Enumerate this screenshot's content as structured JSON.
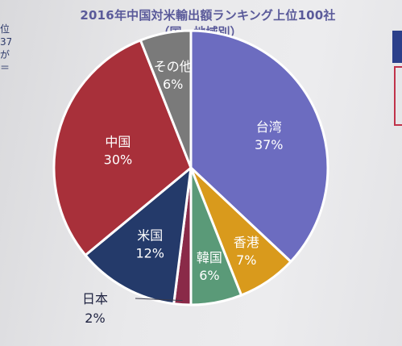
{
  "chart_data": {
    "type": "pie",
    "title": "2016年中国対米輸出額ランキング上位100社",
    "subtitle": "（国・地域別）",
    "slices": [
      {
        "label": "台湾",
        "value": 37,
        "value_label": "37%",
        "color": "#6c6cc0"
      },
      {
        "label": "香港",
        "value": 7,
        "value_label": "7%",
        "color": "#d99a1c"
      },
      {
        "label": "韓国",
        "value": 6,
        "value_label": "6%",
        "color": "#5a9a78"
      },
      {
        "label": "日本",
        "value": 2,
        "value_label": "2%",
        "color": "#8a2a48"
      },
      {
        "label": "米国",
        "value": 12,
        "value_label": "12%",
        "color": "#243a6a"
      },
      {
        "label": "中国",
        "value": 30,
        "value_label": "30%",
        "color": "#a8303a"
      },
      {
        "label": "その他",
        "value": 6,
        "value_label": "6%",
        "color": "#7a7a7a"
      }
    ],
    "start_angle_deg": 0,
    "direction": "clockwise",
    "legend": "none"
  },
  "edge_text": [
    "位",
    "37",
    "が",
    "",
    "",
    "＝"
  ]
}
